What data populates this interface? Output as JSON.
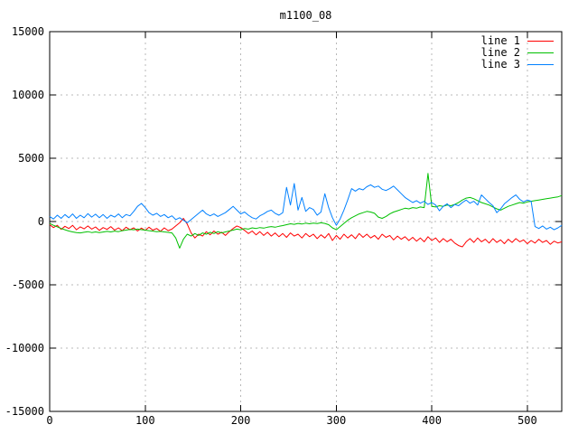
{
  "window": {
    "background": "#ffffff"
  },
  "chart_data": {
    "type": "line",
    "title": "m1100_08",
    "xlabel": "",
    "ylabel": "",
    "xlim": [
      0,
      536
    ],
    "ylim": [
      -15000,
      15000
    ],
    "xticks": [
      0,
      100,
      200,
      300,
      400,
      500
    ],
    "yticks": [
      -15000,
      -10000,
      -5000,
      0,
      5000,
      10000,
      15000
    ],
    "grid": true,
    "grid_color": "#b8b8b8",
    "border_color": "#000000",
    "legend_position": "top-right-inside",
    "x_step": 4,
    "series": [
      {
        "name": "line 1",
        "color": "#ff0000",
        "values": [
          -250,
          -480,
          -300,
          -620,
          -380,
          -550,
          -300,
          -650,
          -420,
          -580,
          -350,
          -600,
          -430,
          -700,
          -480,
          -620,
          -400,
          -680,
          -500,
          -720,
          -450,
          -650,
          -500,
          -750,
          -520,
          -700,
          -450,
          -680,
          -550,
          -780,
          -500,
          -720,
          -600,
          -350,
          -100,
          250,
          -200,
          -900,
          -1300,
          -1000,
          -1150,
          -800,
          -1050,
          -750,
          -1000,
          -850,
          -1100,
          -800,
          -550,
          -350,
          -480,
          -700,
          -950,
          -750,
          -1050,
          -800,
          -1100,
          -850,
          -1150,
          -900,
          -1200,
          -950,
          -1250,
          -900,
          -1150,
          -1000,
          -1300,
          -950,
          -1200,
          -1000,
          -1350,
          -1050,
          -1300,
          -950,
          -1500,
          -1100,
          -1400,
          -1000,
          -1300,
          -1050,
          -1350,
          -950,
          -1250,
          -1000,
          -1300,
          -1100,
          -1400,
          -1000,
          -1250,
          -1100,
          -1450,
          -1150,
          -1400,
          -1200,
          -1500,
          -1250,
          -1550,
          -1300,
          -1600,
          -1200,
          -1500,
          -1300,
          -1650,
          -1350,
          -1600,
          -1400,
          -1700,
          -1900,
          -2000,
          -1600,
          -1350,
          -1650,
          -1300,
          -1600,
          -1400,
          -1700,
          -1350,
          -1650,
          -1450,
          -1750,
          -1400,
          -1650,
          -1350,
          -1600,
          -1450,
          -1750,
          -1500,
          -1700,
          -1400,
          -1650,
          -1500,
          -1800,
          -1550,
          -1700,
          -1600
        ]
      },
      {
        "name": "line 2",
        "color": "#00c000",
        "values": [
          -150,
          -300,
          -420,
          -550,
          -650,
          -750,
          -820,
          -880,
          -900,
          -850,
          -800,
          -870,
          -820,
          -880,
          -830,
          -780,
          -820,
          -760,
          -800,
          -720,
          -680,
          -620,
          -650,
          -600,
          -640,
          -680,
          -720,
          -760,
          -800,
          -780,
          -820,
          -860,
          -900,
          -1300,
          -2100,
          -1400,
          -1000,
          -1150,
          -950,
          -1100,
          -900,
          -1000,
          -850,
          -950,
          -800,
          -900,
          -820,
          -750,
          -680,
          -600,
          -650,
          -550,
          -600,
          -500,
          -550,
          -480,
          -520,
          -450,
          -400,
          -450,
          -380,
          -320,
          -250,
          -180,
          -220,
          -150,
          -200,
          -130,
          -180,
          -120,
          -160,
          -100,
          -150,
          -250,
          -500,
          -650,
          -400,
          -150,
          100,
          300,
          450,
          600,
          700,
          800,
          750,
          650,
          350,
          250,
          400,
          600,
          750,
          850,
          950,
          1050,
          1000,
          1100,
          1050,
          1150,
          1100,
          3800,
          1200,
          1150,
          1250,
          1200,
          1300,
          1250,
          1350,
          1500,
          1700,
          1850,
          1900,
          1800,
          1650,
          1500,
          1400,
          1300,
          1150,
          1000,
          900,
          1050,
          1200,
          1300,
          1400,
          1500,
          1450,
          1550,
          1600,
          1650,
          1700,
          1750,
          1800,
          1850,
          1900,
          1950,
          2050
        ]
      },
      {
        "name": "line 3",
        "color": "#0080ff",
        "values": [
          400,
          200,
          500,
          250,
          550,
          300,
          600,
          250,
          500,
          300,
          620,
          350,
          580,
          300,
          550,
          250,
          500,
          350,
          600,
          300,
          550,
          450,
          800,
          1200,
          1430,
          1100,
          700,
          500,
          650,
          400,
          550,
          300,
          450,
          150,
          300,
          100,
          -100,
          150,
          400,
          650,
          900,
          600,
          450,
          600,
          400,
          550,
          700,
          950,
          1200,
          900,
          600,
          750,
          500,
          300,
          200,
          450,
          600,
          800,
          900,
          650,
          500,
          700,
          2700,
          1300,
          3000,
          900,
          1900,
          800,
          1100,
          950,
          500,
          750,
          2200,
          1100,
          300,
          -300,
          200,
          900,
          1700,
          2600,
          2400,
          2600,
          2500,
          2750,
          2900,
          2700,
          2800,
          2550,
          2450,
          2600,
          2800,
          2500,
          2200,
          1900,
          1700,
          1500,
          1650,
          1450,
          1600,
          1350,
          1500,
          1300,
          850,
          1200,
          1400,
          1100,
          1350,
          1250,
          1500,
          1700,
          1450,
          1600,
          1300,
          2100,
          1800,
          1500,
          1250,
          700,
          1000,
          1400,
          1650,
          1900,
          2100,
          1750,
          1550,
          1700,
          1600,
          -400,
          -550,
          -350,
          -600,
          -450,
          -650,
          -500,
          -300
        ]
      }
    ]
  }
}
